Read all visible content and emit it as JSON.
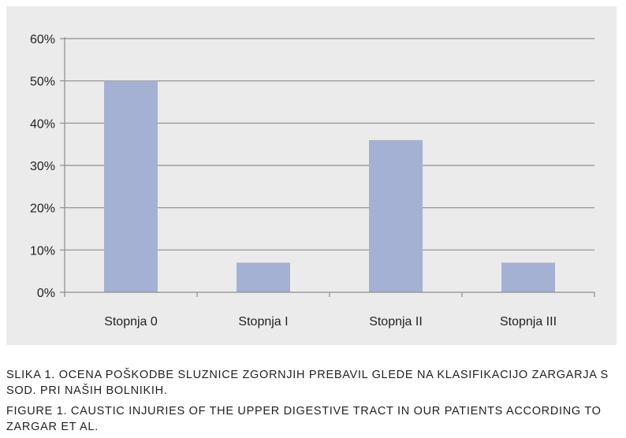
{
  "chart_data": {
    "type": "bar",
    "categories": [
      "Stopnja 0",
      "Stopnja I",
      "Stopnja II",
      "Stopnja III"
    ],
    "values": [
      50,
      7,
      36,
      7
    ],
    "y_tick_labels": [
      "0%",
      "10%",
      "20%",
      "30%",
      "40%",
      "50%",
      "60%"
    ],
    "y_ticks": [
      0,
      10,
      20,
      30,
      40,
      50,
      60
    ],
    "ylim": [
      0,
      60
    ],
    "title": "",
    "xlabel": "",
    "ylabel": "",
    "grid": true,
    "legend": "none",
    "colors": {
      "bar": "#a4b1d3",
      "grid": "#8c8c8c",
      "axis": "#8c8c8c",
      "background": "#ebebeb"
    }
  },
  "captions": {
    "slovenian": "SLIKA 1. OCENA POŠKODBE SLUZNICE ZGORNJIH PREBAVIL GLEDE NA KLASIFIKACIJO ZARGARJA S SOD. PRI NAŠIH BOLNIKIH.",
    "english": "FIGURE 1. CAUSTIC INJURIES OF THE UPPER DIGESTIVE TRACT IN OUR PATIENTS ACCORDING TO ZARGAR ET AL."
  }
}
